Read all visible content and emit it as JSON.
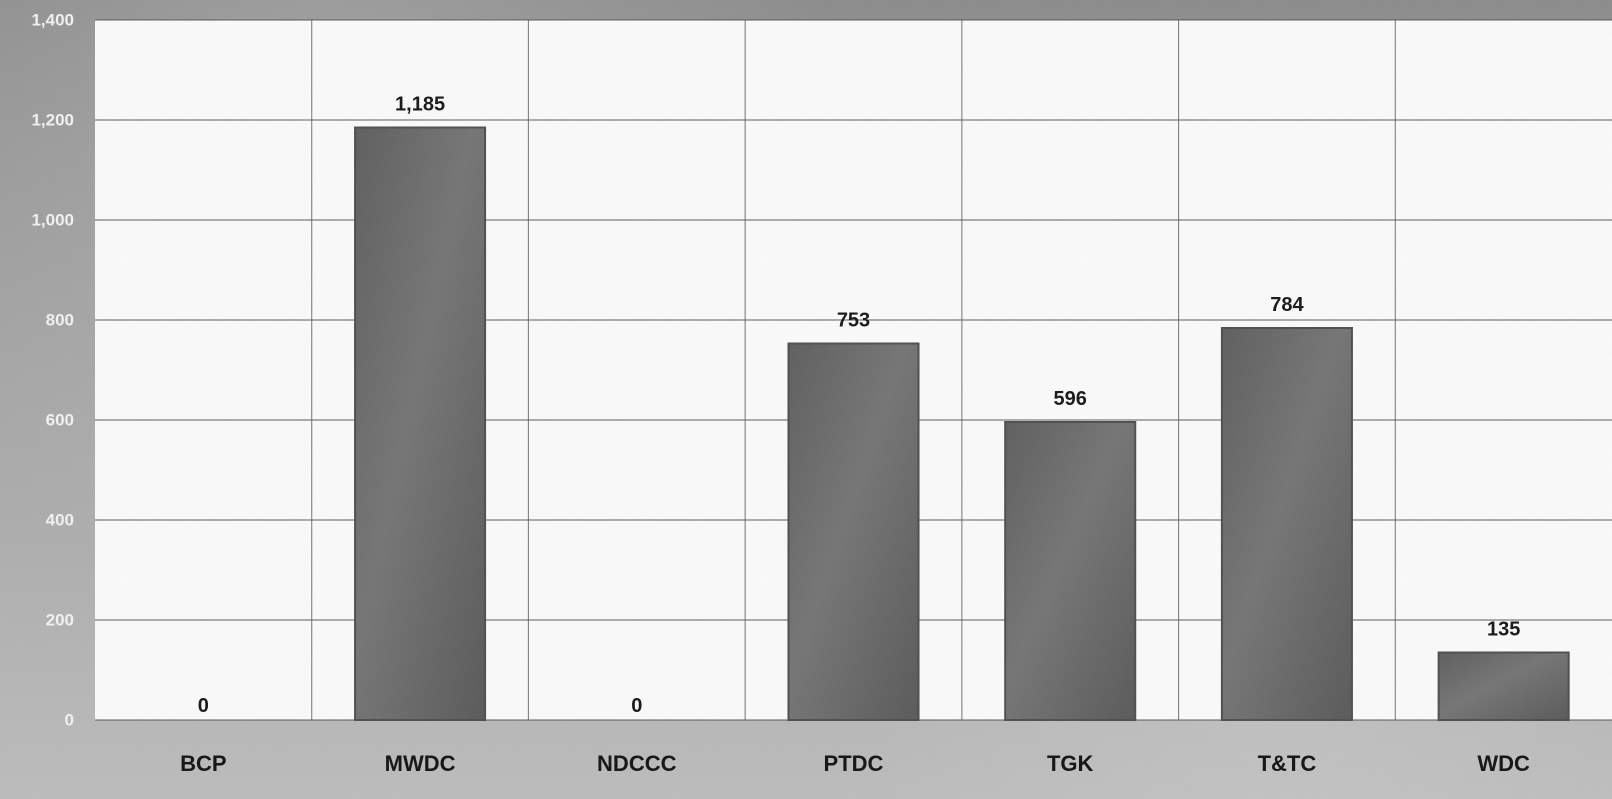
{
  "chart_data": {
    "type": "bar",
    "categories": [
      "BCP",
      "MWDC",
      "NDCCC",
      "PTDC",
      "TGK",
      "T&TC",
      "WDC"
    ],
    "values": [
      0,
      1185,
      0,
      753,
      596,
      784,
      135
    ],
    "data_labels": [
      "0",
      "1,185",
      "0",
      "753",
      "596",
      "784",
      "135"
    ],
    "y_ticks": [
      "0",
      "200",
      "400",
      "600",
      "800",
      "1,000",
      "1,200",
      "1,400"
    ],
    "ylim": [
      0,
      1400
    ],
    "grid": true,
    "legend": "",
    "title": "",
    "xlabel": "",
    "ylabel": ""
  },
  "colors": {
    "plot_background": "#fbfbfb",
    "grid": "#505050",
    "bar_fill": "#6b6b6b",
    "bar_edge": "#4d4d4d"
  }
}
